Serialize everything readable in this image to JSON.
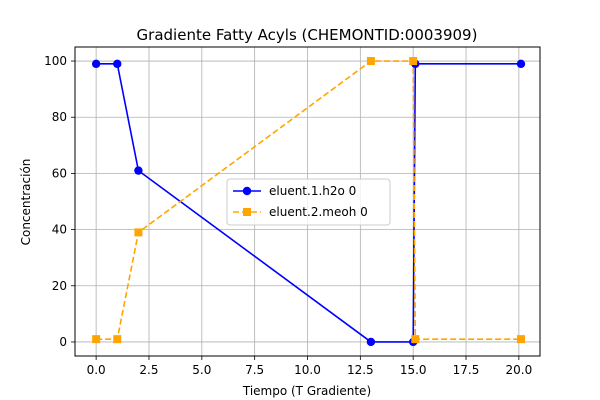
{
  "chart_data": {
    "type": "line",
    "title": "Gradiente Fatty Acyls (CHEMONTID:0003909)",
    "xlabel": "Tiempo (T Gradiente)",
    "ylabel": "Concentración",
    "xlim": [
      -1.0,
      21.0
    ],
    "ylim": [
      -5,
      105
    ],
    "xticks": [
      0.0,
      2.5,
      5.0,
      7.5,
      10.0,
      12.5,
      15.0,
      17.5,
      20.0
    ],
    "xtick_labels": [
      "0.0",
      "2.5",
      "5.0",
      "7.5",
      "10.0",
      "12.5",
      "15.0",
      "17.5",
      "20.0"
    ],
    "yticks": [
      0,
      20,
      40,
      60,
      80,
      100
    ],
    "ytick_labels": [
      "0",
      "20",
      "40",
      "60",
      "80",
      "100"
    ],
    "grid": true,
    "legend_position": "center",
    "series": [
      {
        "name": "eluent.1.h2o 0",
        "color": "#0000ff",
        "linestyle": "solid",
        "marker": "circle",
        "x": [
          0,
          1,
          2,
          13,
          15,
          15.1,
          20.1
        ],
        "y": [
          99,
          99,
          61,
          0,
          0,
          99,
          99
        ]
      },
      {
        "name": "eluent.2.meoh 0",
        "color": "#ffa500",
        "linestyle": "dashed",
        "marker": "square",
        "x": [
          0,
          1,
          2,
          13,
          15,
          15.1,
          20.1
        ],
        "y": [
          1,
          1,
          39,
          100,
          100,
          1,
          1
        ]
      }
    ]
  }
}
